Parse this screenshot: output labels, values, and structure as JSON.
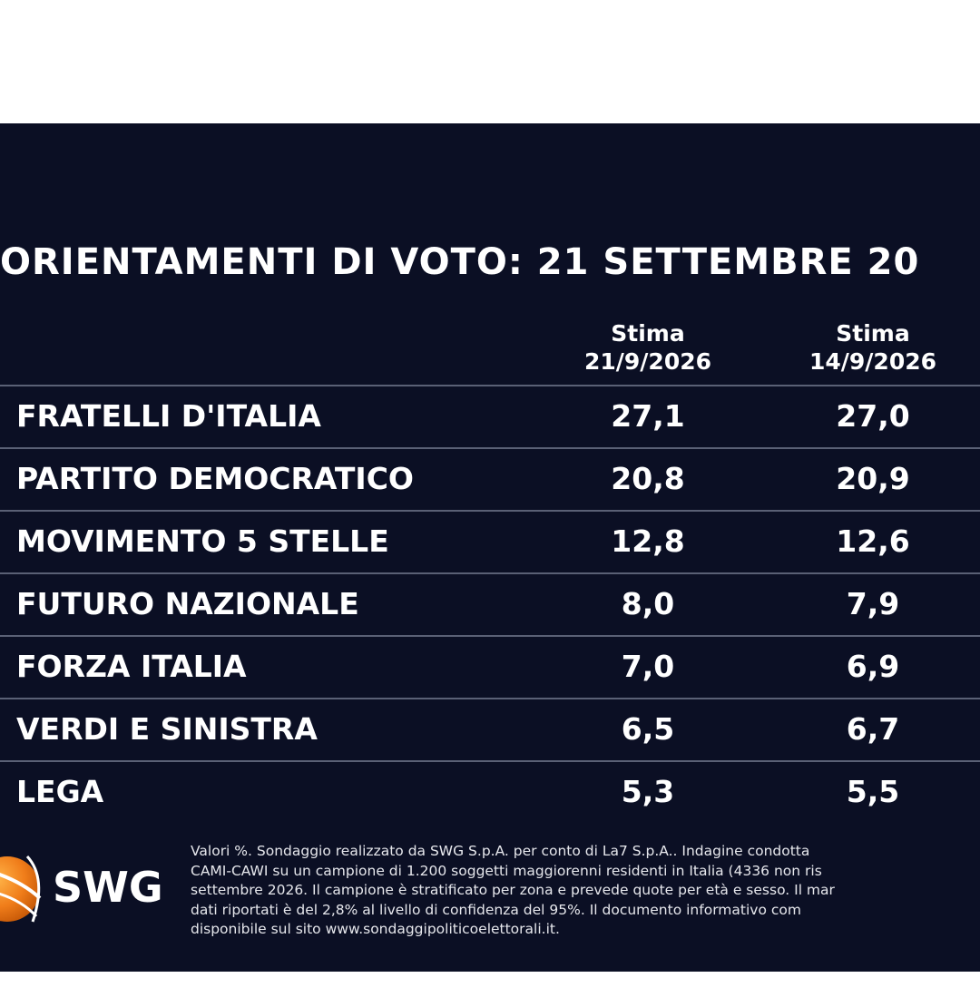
{
  "chart_data": {
    "type": "table",
    "title": "ORIENTAMENTI DI VOTO: 21 SETTEMBRE 20",
    "columns": [
      [
        "Stima",
        "21/9/2026"
      ],
      [
        "Stima",
        "14/9/2026"
      ]
    ],
    "rows": [
      {
        "party": "FRATELLI D'ITALIA",
        "a": "27,1",
        "b": "27,0"
      },
      {
        "party": "PARTITO DEMOCRATICO",
        "a": "20,8",
        "b": "20,9"
      },
      {
        "party": "MOVIMENTO 5 STELLE",
        "a": "12,8",
        "b": "12,6"
      },
      {
        "party": "FUTURO NAZIONALE",
        "a": "8,0",
        "b": "7,9"
      },
      {
        "party": "FORZA ITALIA",
        "a": "7,0",
        "b": "6,9"
      },
      {
        "party": "VERDI E SINISTRA",
        "a": "6,5",
        "b": "6,7"
      },
      {
        "party": "LEGA",
        "a": "5,3",
        "b": "5,5"
      }
    ]
  },
  "logo": {
    "text": "SWG",
    "icon": "swg-globe-icon"
  },
  "footnote": [
    "Valori %. Sondaggio realizzato da SWG S.p.A. per conto di La7 S.p.A.. Indagine condotta",
    "CAMI-CAWI su un campione di 1.200 soggetti maggiorenni residenti in Italia (4336 non ris",
    "settembre 2026. Il campione è stratificato per zona e prevede quote per età e sesso. Il mar",
    "dati riportati è del 2,8% al livello di confidenza del 95%. Il documento informativo com",
    "disponibile sul sito www.sondaggipoliticoelettorali.it."
  ],
  "colors": {
    "background": "#0b0f24",
    "text": "#ffffff",
    "rule": "#5a6075",
    "logo_orange": "#f07d1a"
  }
}
